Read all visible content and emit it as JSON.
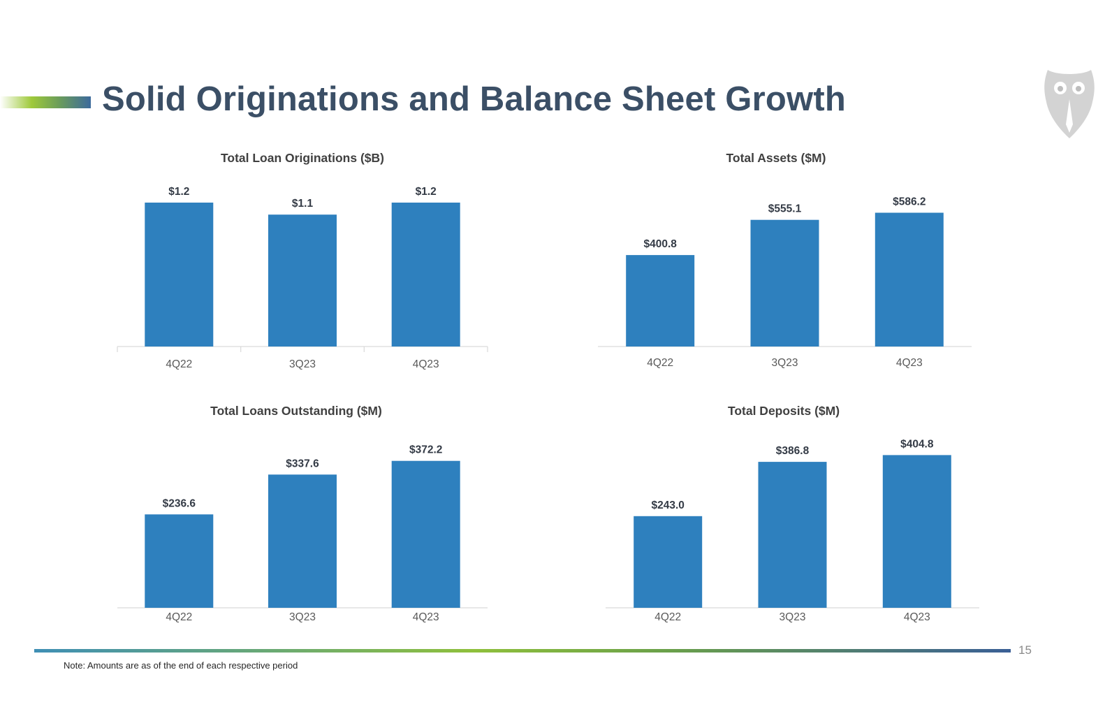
{
  "title": "Solid Originations and Balance Sheet Growth",
  "page_number": "15",
  "note": "Note: Amounts are as of the end of each respective period",
  "logo": "owl-logo-icon",
  "colors": {
    "bar": "#2e80be",
    "title": "#3b4f66",
    "axis": "#d9d9d9"
  },
  "chart_data": [
    {
      "type": "bar",
      "title": "Total Loan Originations ($B)",
      "categories": [
        "4Q22",
        "3Q23",
        "4Q23"
      ],
      "values": [
        1.2,
        1.1,
        1.2
      ],
      "value_labels": [
        "$1.2",
        "$1.1",
        "$1.2"
      ],
      "ylim": [
        0,
        1.2
      ]
    },
    {
      "type": "bar",
      "title": "Total Assets ($M)",
      "categories": [
        "4Q22",
        "3Q23",
        "4Q23"
      ],
      "values": [
        400.8,
        555.1,
        586.2
      ],
      "value_labels": [
        "$400.8",
        "$555.1",
        "$586.2"
      ],
      "ylim": [
        0,
        600
      ]
    },
    {
      "type": "bar",
      "title": "Total Loans Outstanding ($M)",
      "categories": [
        "4Q22",
        "3Q23",
        "4Q23"
      ],
      "values": [
        236.6,
        337.6,
        372.2
      ],
      "value_labels": [
        "$236.6",
        "$337.6",
        "$372.2"
      ],
      "ylim": [
        0,
        400
      ]
    },
    {
      "type": "bar",
      "title": "Total Deposits ($M)",
      "categories": [
        "4Q22",
        "3Q23",
        "4Q23"
      ],
      "values": [
        243.0,
        386.8,
        404.8
      ],
      "value_labels": [
        "$243.0",
        "$386.8",
        "$404.8"
      ],
      "ylim": [
        0,
        400
      ]
    }
  ]
}
